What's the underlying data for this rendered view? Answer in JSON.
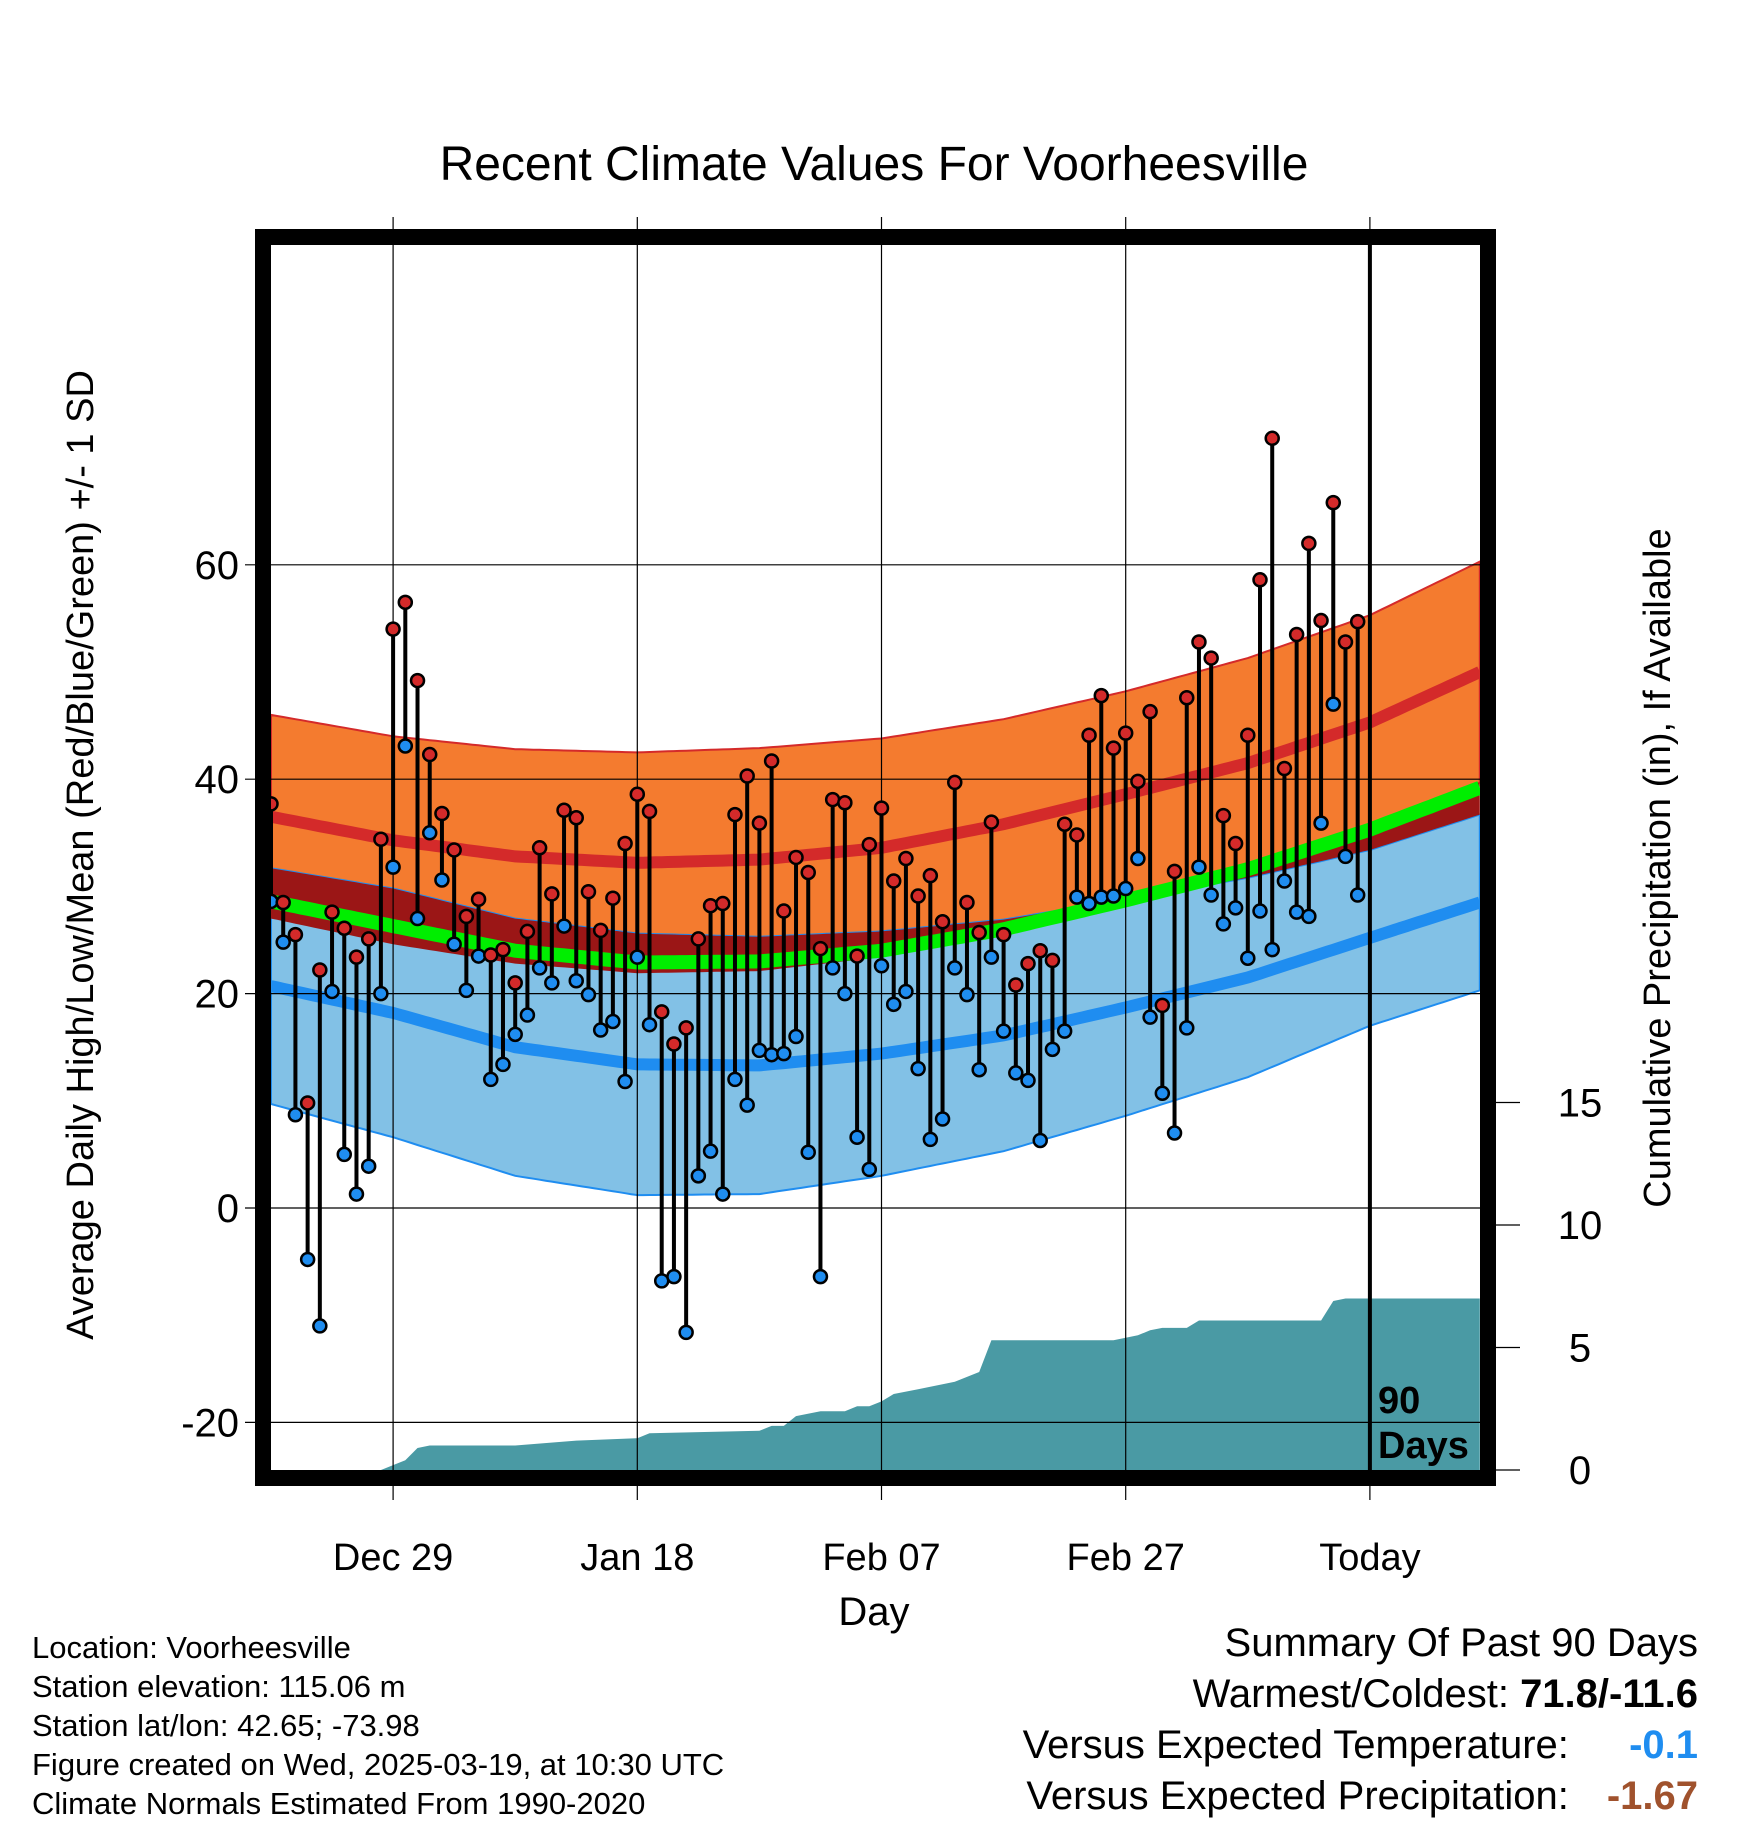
{
  "chart_data": {
    "type": "line",
    "title": "Recent Climate Values For Voorheesville",
    "xlabel": "Day",
    "ylabel": "Average Daily High/Low/Mean (Red/Blue/Green) +/- 1 SD",
    "y2label": "Cumulative Precipitation (in), If Available",
    "ylim": [
      -20,
      75
    ],
    "y_ticks": [
      -20,
      0,
      20,
      40,
      60
    ],
    "y2lim": [
      0,
      30
    ],
    "y2_ticks": [
      0,
      5,
      10,
      15
    ],
    "x_ticks": [
      {
        "day": 10,
        "label": "Dec 29"
      },
      {
        "day": 30,
        "label": "Jan 18"
      },
      {
        "day": 50,
        "label": "Feb 07"
      },
      {
        "day": 70,
        "label": "Feb 27"
      },
      {
        "day": 90,
        "label": "Today"
      }
    ],
    "today_marker": {
      "day": 90,
      "label_line1": "90",
      "label_line2": "Days"
    },
    "grid": true,
    "colors": {
      "high_band": "#f47b2f",
      "high_mean": "#d42a2a",
      "low_band": "#82c1e6",
      "low_mean": "#1f8df0",
      "mean": "#00ee00",
      "overlap": "#9b1616",
      "precip": "#4a9aa4",
      "high_point": "#d42a2a",
      "low_point": "#1f8df0"
    },
    "normals": {
      "day": [
        0,
        10,
        20,
        30,
        40,
        50,
        60,
        70,
        80,
        90,
        99
      ],
      "high": [
        36.5,
        34.3,
        32.8,
        32.2,
        32.5,
        33.6,
        35.8,
        38.6,
        41.5,
        45.3,
        50.0
      ],
      "high_sd": [
        9.5,
        9.7,
        10.0,
        10.3,
        10.4,
        10.2,
        9.8,
        9.6,
        9.8,
        10.0,
        10.3
      ],
      "low": [
        20.7,
        18.2,
        15.0,
        13.4,
        13.3,
        14.4,
        16.1,
        18.7,
        21.5,
        25.2,
        28.5
      ],
      "low_sd": [
        11.0,
        11.6,
        12.0,
        12.2,
        12.0,
        11.4,
        10.8,
        10.1,
        9.3,
        8.2,
        8.2
      ],
      "mean": [
        28.6,
        26.3,
        24.0,
        22.9,
        23.0,
        24.0,
        26.0,
        28.7,
        31.6,
        35.3,
        39.2
      ]
    },
    "series": [
      {
        "name": "High",
        "values": [
          37.7,
          28.5,
          25.5,
          9.8,
          22.2,
          27.6,
          26.1,
          23.4,
          25.1,
          34.4,
          54.0,
          56.5,
          49.2,
          42.3,
          36.8,
          33.4,
          27.2,
          28.8,
          23.6,
          24.1,
          21.0,
          25.8,
          33.6,
          29.3,
          37.1,
          36.4,
          29.5,
          25.9,
          28.9,
          34.0,
          38.6,
          37.0,
          18.3,
          15.3,
          16.8,
          25.1,
          28.2,
          28.4,
          36.7,
          40.3,
          35.9,
          41.7,
          27.7,
          32.7,
          31.3,
          24.2,
          38.1,
          37.8,
          23.5,
          33.9,
          37.3,
          30.5,
          32.6,
          29.1,
          31.0,
          26.7,
          39.7,
          28.5,
          25.7,
          36.0,
          25.5,
          20.8,
          22.8,
          24.0,
          23.1,
          35.8,
          34.8,
          44.1,
          47.8,
          42.9,
          44.3,
          39.8,
          46.3,
          18.9,
          31.4,
          47.6,
          52.8,
          51.3,
          36.6,
          34.0,
          44.1,
          58.6,
          71.8,
          41.0,
          53.5,
          62.0,
          54.8,
          65.8,
          52.8,
          54.7
        ]
      },
      {
        "name": "Low",
        "values": [
          28.6,
          24.8,
          8.7,
          -4.8,
          -11.0,
          20.2,
          5.0,
          1.3,
          3.9,
          20.0,
          31.8,
          43.1,
          27.0,
          35.0,
          30.6,
          24.6,
          20.3,
          23.5,
          12.0,
          13.4,
          16.2,
          18.0,
          22.4,
          21.0,
          26.3,
          21.2,
          19.9,
          16.6,
          17.4,
          11.8,
          23.4,
          17.1,
          -6.8,
          -6.4,
          -11.6,
          3.0,
          5.3,
          1.3,
          12.0,
          9.6,
          14.7,
          14.3,
          14.4,
          16.0,
          5.2,
          -6.4,
          22.4,
          20.0,
          6.6,
          3.6,
          22.6,
          19.0,
          20.2,
          13.0,
          6.4,
          8.3,
          22.4,
          19.9,
          12.9,
          23.4,
          16.5,
          12.6,
          11.9,
          6.3,
          14.8,
          16.5,
          29.0,
          28.4,
          29.0,
          29.1,
          29.8,
          32.6,
          17.8,
          10.7,
          7.0,
          16.8,
          31.8,
          29.2,
          26.5,
          28.0,
          23.3,
          27.7,
          24.1,
          30.5,
          27.6,
          27.2,
          35.9,
          47.0,
          32.8,
          29.2
        ]
      },
      {
        "name": "Cumulative Precipitation",
        "axis": "right",
        "x": [
          0,
          9,
          10,
          11,
          12,
          13,
          20,
          25,
          30,
          31,
          40,
          41,
          42,
          43,
          45,
          47,
          48,
          49,
          50,
          51,
          52,
          53,
          54,
          55,
          56,
          57,
          58,
          59,
          69,
          70,
          71,
          72,
          73,
          75,
          76,
          79,
          80,
          81,
          86,
          87,
          88,
          99
        ],
        "values": [
          0.0,
          0.0,
          0.2,
          0.4,
          0.9,
          1.0,
          1.0,
          1.2,
          1.3,
          1.5,
          1.6,
          1.8,
          1.8,
          2.2,
          2.4,
          2.4,
          2.6,
          2.6,
          2.8,
          3.1,
          3.2,
          3.3,
          3.4,
          3.5,
          3.6,
          3.8,
          4.0,
          5.3,
          5.3,
          5.4,
          5.5,
          5.7,
          5.8,
          5.8,
          6.1,
          6.1,
          6.1,
          6.1,
          6.1,
          6.9,
          7.0,
          7.0
        ]
      }
    ]
  },
  "info": {
    "location": "Location: Voorheesville",
    "elevation": "Station elevation: 115.06 m",
    "latlon": "Station lat/lon: 42.65; -73.98",
    "created": "Figure created on Wed, 2025-03-19, at 10:30 UTC",
    "normals": "Climate Normals Estimated From 1990-2020"
  },
  "summary": {
    "title": "Summary Of Past 90 Days",
    "extremes_label": "Warmest/Coldest:",
    "extremes_value": "71.8/-11.6",
    "temp_label": "Versus Expected Temperature:",
    "temp_value": "-0.1",
    "temp_color": "#1f8df0",
    "precip_label": "Versus Expected Precipitation:",
    "precip_value": "-1.67",
    "precip_color": "#a0522d"
  }
}
